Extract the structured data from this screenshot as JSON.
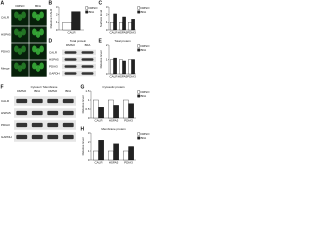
{
  "figure": {
    "panels": [
      {
        "label": "A",
        "type": "images",
        "columns": [
          "DMSO",
          "BFA"
        ],
        "rows": [
          "CALR",
          "HSPA5",
          "PDIA3",
          "Merge"
        ]
      },
      {
        "label": "B",
        "type": "bar",
        "ylabel": "Relative CALR",
        "categories": [
          "CALR"
        ],
        "series": [
          {
            "name": "DMSO",
            "color": "#ffffff",
            "values": [
              1.0
            ]
          },
          {
            "name": "BFA",
            "color": "#222222",
            "values": [
              2.4
            ]
          }
        ],
        "ylim": [
          0,
          3
        ],
        "yticks": [
          0,
          1,
          2,
          3
        ]
      },
      {
        "label": "C",
        "type": "bar",
        "ylabel": "Surface level",
        "categories": [
          "CALR",
          "HSPA5",
          "PDIA3"
        ],
        "series": [
          {
            "name": "DMSO",
            "color": "#ffffff",
            "values": [
              1.0,
              1.0,
              1.0
            ]
          },
          {
            "name": "BFA",
            "color": "#222222",
            "values": [
              2.1,
              1.7,
              1.4
            ]
          }
        ],
        "ylim": [
          0,
          3
        ],
        "yticks": [
          0,
          1,
          2,
          3
        ]
      },
      {
        "label": "D",
        "type": "blot",
        "title": "Total protein",
        "lanes": [
          "DMSO",
          "BFA"
        ],
        "rows": [
          "CALR",
          "HSPA5",
          "PDIA3",
          "GAPDH"
        ]
      },
      {
        "label": "E",
        "type": "bar",
        "ylabel": "Relative level",
        "title": "Total protein",
        "categories": [
          "CALR",
          "HSPA5",
          "PDIA3"
        ],
        "series": [
          {
            "name": "DMSO",
            "color": "#ffffff",
            "values": [
              1.0,
              1.0,
              1.0
            ]
          },
          {
            "name": "BFA",
            "color": "#222222",
            "values": [
              1.1,
              0.9,
              1.0
            ]
          }
        ],
        "ylim": [
          0,
          2
        ],
        "yticks": [
          0,
          1,
          2
        ]
      },
      {
        "label": "F",
        "type": "blot",
        "title": "Cytosol / Membrane",
        "lanes": [
          "DMSO",
          "BFA",
          "DMSO",
          "BFA"
        ],
        "rows": [
          "CALR",
          "HSPA5",
          "PDIA3",
          "GAPDH"
        ]
      },
      {
        "label": "G",
        "type": "bar",
        "ylabel": "Relative level",
        "title": "Cytosolic protein",
        "categories": [
          "CALR",
          "HSPA5",
          "PDIA3"
        ],
        "series": [
          {
            "name": "DMSO",
            "color": "#ffffff",
            "values": [
              1.0,
              1.0,
              1.0
            ]
          },
          {
            "name": "BFA",
            "color": "#222222",
            "values": [
              0.6,
              0.7,
              0.8
            ]
          }
        ],
        "ylim": [
          0,
          1.5
        ],
        "yticks": [
          0,
          0.5,
          1,
          1.5
        ]
      },
      {
        "label": "H",
        "type": "bar",
        "ylabel": "Relative level",
        "title": "Membrane protein",
        "categories": [
          "CALR",
          "HSPA5",
          "PDIA3"
        ],
        "series": [
          {
            "name": "DMSO",
            "color": "#ffffff",
            "values": [
              1.0,
              1.0,
              1.0
            ]
          },
          {
            "name": "BFA",
            "color": "#222222",
            "values": [
              2.2,
              1.8,
              1.5
            ]
          }
        ],
        "ylim": [
          0,
          3
        ],
        "yticks": [
          0,
          1,
          2,
          3
        ]
      }
    ]
  }
}
